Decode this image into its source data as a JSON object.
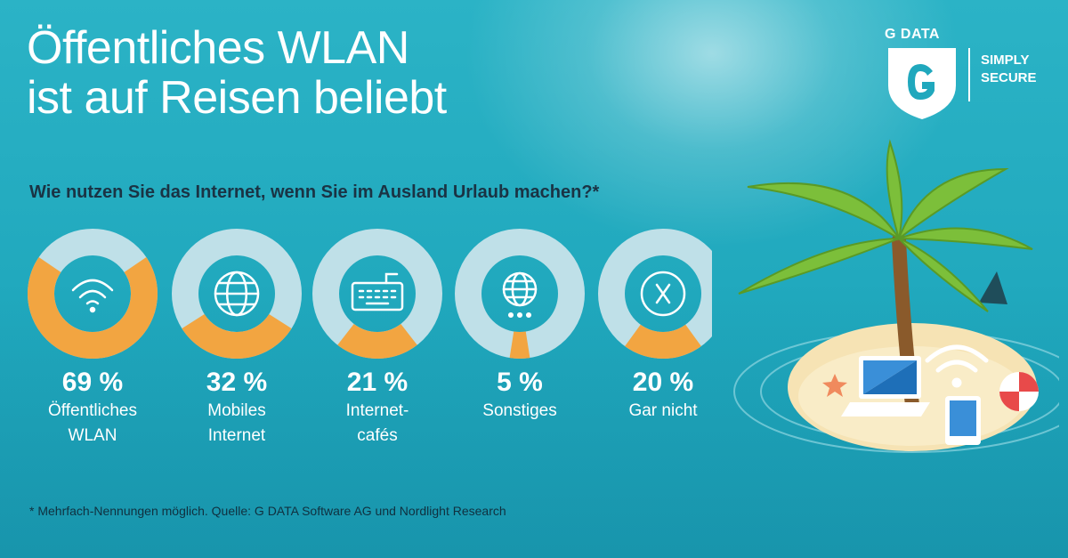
{
  "title": {
    "line1": "Öffentliches WLAN",
    "line2": "ist auf Reisen beliebt"
  },
  "question": "Wie nutzen Sie das Internet, wenn Sie im Ausland Urlaub machen?*",
  "logo": {
    "brand": "G DATA",
    "tag_line1": "SIMPLY",
    "tag_line2": "SECURE"
  },
  "footnote": "* Mehrfach-Nennungen möglich. Quelle:  G DATA Software AG und Nordlight Research",
  "colors": {
    "ring_fill": "#f2a541",
    "ring_track": "#bfe0e8",
    "icon": "#ffffff"
  },
  "chart_data": {
    "type": "gauge-rings",
    "title": "Wie nutzen Sie das Internet, wenn Sie im Ausland Urlaub machen?*",
    "unit": "%",
    "items": [
      {
        "value": 69,
        "pct_label": "69 %",
        "label_line1": "Öffentliches",
        "label_line2": "WLAN",
        "icon": "wifi-icon"
      },
      {
        "value": 32,
        "pct_label": "32 %",
        "label_line1": "Mobiles",
        "label_line2": "Internet",
        "icon": "globe-icon"
      },
      {
        "value": 21,
        "pct_label": "21 %",
        "label_line1": "Internet-",
        "label_line2": "cafés",
        "icon": "keyboard-icon"
      },
      {
        "value": 5,
        "pct_label": "5 %",
        "label_line1": "Sonstiges",
        "label_line2": "",
        "icon": "globe-dots-icon"
      },
      {
        "value": 20,
        "pct_label": "20 %",
        "label_line1": "Gar nicht",
        "label_line2": "",
        "icon": "x-circle-icon"
      }
    ]
  }
}
